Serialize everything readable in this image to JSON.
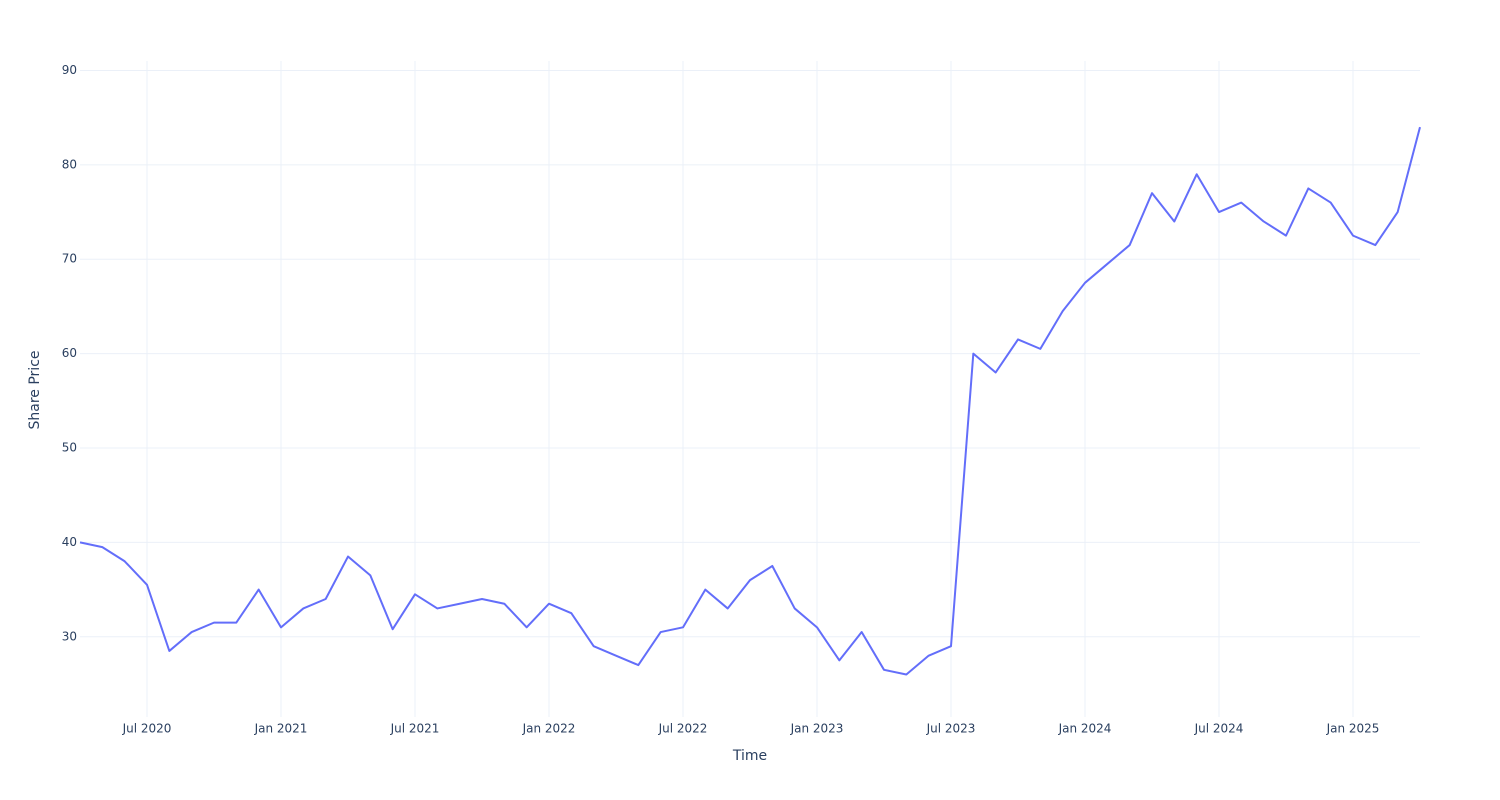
{
  "chart_data": {
    "type": "line",
    "x_label": "Time",
    "y_label": "Share Price",
    "x": [
      "2020-04",
      "2020-05",
      "2020-06",
      "2020-07",
      "2020-08",
      "2020-09",
      "2020-10",
      "2020-11",
      "2020-12",
      "2021-01",
      "2021-02",
      "2021-03",
      "2021-04",
      "2021-05",
      "2021-06",
      "2021-07",
      "2021-08",
      "2021-09",
      "2021-10",
      "2021-11",
      "2021-12",
      "2022-01",
      "2022-02",
      "2022-03",
      "2022-04",
      "2022-05",
      "2022-06",
      "2022-07",
      "2022-08",
      "2022-09",
      "2022-10",
      "2022-11",
      "2022-12",
      "2023-01",
      "2023-02",
      "2023-03",
      "2023-04",
      "2023-05",
      "2023-06",
      "2023-07",
      "2023-08",
      "2023-09",
      "2023-10",
      "2023-11",
      "2023-12",
      "2024-01",
      "2024-02",
      "2024-03",
      "2024-04",
      "2024-05",
      "2024-06",
      "2024-07",
      "2024-08",
      "2024-09",
      "2024-10",
      "2024-11",
      "2024-12",
      "2025-01",
      "2025-02",
      "2025-03",
      "2025-04"
    ],
    "series": [
      {
        "name": "Share Price",
        "color": "#636efa",
        "values": [
          40,
          39.5,
          38,
          35.5,
          28.5,
          30.5,
          31.5,
          31.5,
          35,
          31,
          33,
          34,
          38.5,
          36.5,
          30.8,
          34.5,
          33,
          33.5,
          34,
          33.5,
          31,
          33.5,
          32.5,
          29,
          28,
          27,
          30.5,
          31,
          35,
          33,
          36,
          37.5,
          33,
          31,
          27.5,
          30.5,
          26.5,
          26,
          28,
          29,
          60,
          58,
          61.5,
          60.5,
          64.5,
          67.5,
          69.5,
          71.5,
          77,
          74,
          79,
          75,
          76,
          74,
          72.5,
          77.5,
          76,
          72.5,
          71.5,
          75,
          84
        ]
      }
    ],
    "xlim": [
      "2020-04",
      "2025-04"
    ],
    "xticks": [
      {
        "value": "2020-07",
        "label": "Jul 2020"
      },
      {
        "value": "2021-01",
        "label": "Jan 2021"
      },
      {
        "value": "2021-07",
        "label": "Jul 2021"
      },
      {
        "value": "2022-01",
        "label": "Jan 2022"
      },
      {
        "value": "2022-07",
        "label": "Jul 2022"
      },
      {
        "value": "2023-01",
        "label": "Jan 2023"
      },
      {
        "value": "2023-07",
        "label": "Jul 2023"
      },
      {
        "value": "2024-01",
        "label": "Jan 2024"
      },
      {
        "value": "2024-07",
        "label": "Jul 2024"
      },
      {
        "value": "2025-01",
        "label": "Jan 2025"
      }
    ],
    "ylim": [
      21.5,
      91
    ],
    "yticks": [
      30,
      40,
      50,
      60,
      70,
      80,
      90
    ],
    "grid": true
  }
}
